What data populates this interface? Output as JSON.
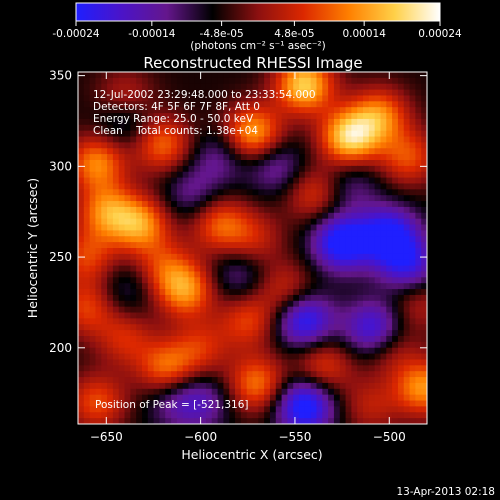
{
  "chart_data": {
    "type": "heatmap",
    "title": "Reconstructed RHESSI Image",
    "xlabel": "Heliocentric X (arcsec)",
    "ylabel": "Heliocentric Y (arcsec)",
    "xlim": [
      -665,
      -480
    ],
    "ylim": [
      158,
      352
    ],
    "x_ticks": [
      -650,
      -600,
      -550,
      -500
    ],
    "y_ticks": [
      200,
      250,
      300,
      350
    ],
    "colorbar": {
      "ticks": [
        "-0.00024",
        "-0.00014",
        "-4.8e-05",
        "4.8e-05",
        "0.00014",
        "0.00024"
      ],
      "tick_values": [
        -0.00024,
        -0.00014,
        -4.8e-05,
        4.8e-05,
        0.00014,
        0.00024
      ],
      "range": [
        -0.00024,
        0.00024
      ],
      "unit_label": "(photons cm⁻² s⁻¹ asec⁻²)",
      "stops": [
        "#1f1fff",
        "#4b14c8",
        "#64168c",
        "#000000",
        "#8c1010",
        "#dc2800",
        "#ff8000",
        "#ffd048",
        "#ffffff"
      ]
    },
    "annotations": [
      "12-Jul-2002 23:29:48.000 to 23:33:54.000",
      "Detectors: 4F 5F 6F 7F 8F, Att 0",
      "Energy Range: 25.0 - 50.0 keV",
      "Clean    Total counts: 1.38e+04"
    ],
    "peak_label": "Position of Peak = [-521,316]",
    "peak": [
      -521,
      316
    ],
    "bright_sources": [
      {
        "x": -545,
        "y": 345,
        "v": 0.00023
      },
      {
        "x": -521,
        "y": 316,
        "v": 0.00024
      },
      {
        "x": -572,
        "y": 318,
        "v": 0.0002
      },
      {
        "x": -505,
        "y": 328,
        "v": 0.00016
      },
      {
        "x": -490,
        "y": 305,
        "v": 0.00013
      },
      {
        "x": -655,
        "y": 302,
        "v": 0.00017
      },
      {
        "x": -620,
        "y": 312,
        "v": 0.00015
      },
      {
        "x": -650,
        "y": 275,
        "v": 0.00016
      },
      {
        "x": -632,
        "y": 268,
        "v": 0.00018
      },
      {
        "x": -660,
        "y": 250,
        "v": 0.00012
      },
      {
        "x": -590,
        "y": 268,
        "v": 0.00014
      },
      {
        "x": -620,
        "y": 245,
        "v": 0.0001
      },
      {
        "x": -608,
        "y": 232,
        "v": 0.00018
      },
      {
        "x": -660,
        "y": 222,
        "v": 0.00012
      },
      {
        "x": -640,
        "y": 205,
        "v": 0.0001
      },
      {
        "x": -572,
        "y": 260,
        "v": 9e-05
      },
      {
        "x": -540,
        "y": 285,
        "v": 0.00011
      },
      {
        "x": -555,
        "y": 232,
        "v": 0.0001
      },
      {
        "x": -575,
        "y": 215,
        "v": 0.00012
      },
      {
        "x": -600,
        "y": 200,
        "v": 0.0001
      },
      {
        "x": -618,
        "y": 188,
        "v": 0.00016
      },
      {
        "x": -570,
        "y": 180,
        "v": 0.00016
      },
      {
        "x": -535,
        "y": 190,
        "v": 0.00012
      },
      {
        "x": -500,
        "y": 200,
        "v": 9e-05
      },
      {
        "x": -482,
        "y": 178,
        "v": 0.00018
      },
      {
        "x": -485,
        "y": 225,
        "v": 8e-05
      },
      {
        "x": -510,
        "y": 168,
        "v": 8e-05
      },
      {
        "x": -655,
        "y": 170,
        "v": 0.00013
      },
      {
        "x": -640,
        "y": 338,
        "v": 9e-05
      }
    ],
    "dark_sources": [
      {
        "x": -525,
        "y": 258,
        "v": -0.00022
      },
      {
        "x": -500,
        "y": 262,
        "v": -0.0002
      },
      {
        "x": -545,
        "y": 215,
        "v": -0.00019
      },
      {
        "x": -508,
        "y": 210,
        "v": -0.00018
      },
      {
        "x": -545,
        "y": 168,
        "v": -0.00022
      },
      {
        "x": -490,
        "y": 245,
        "v": -0.00015
      },
      {
        "x": -590,
        "y": 305,
        "v": -8e-05
      },
      {
        "x": -560,
        "y": 300,
        "v": -0.0001
      },
      {
        "x": -580,
        "y": 240,
        "v": -8e-05
      },
      {
        "x": -605,
        "y": 285,
        "v": -8e-05
      },
      {
        "x": -640,
        "y": 325,
        "v": -8e-05
      },
      {
        "x": -640,
        "y": 232,
        "v": -6e-05
      },
      {
        "x": -615,
        "y": 172,
        "v": -8e-05
      },
      {
        "x": -520,
        "y": 290,
        "v": -7e-05
      },
      {
        "x": -600,
        "y": 170,
        "v": -0.0001
      }
    ]
  },
  "timestamp": "13-Apr-2013 02:18"
}
